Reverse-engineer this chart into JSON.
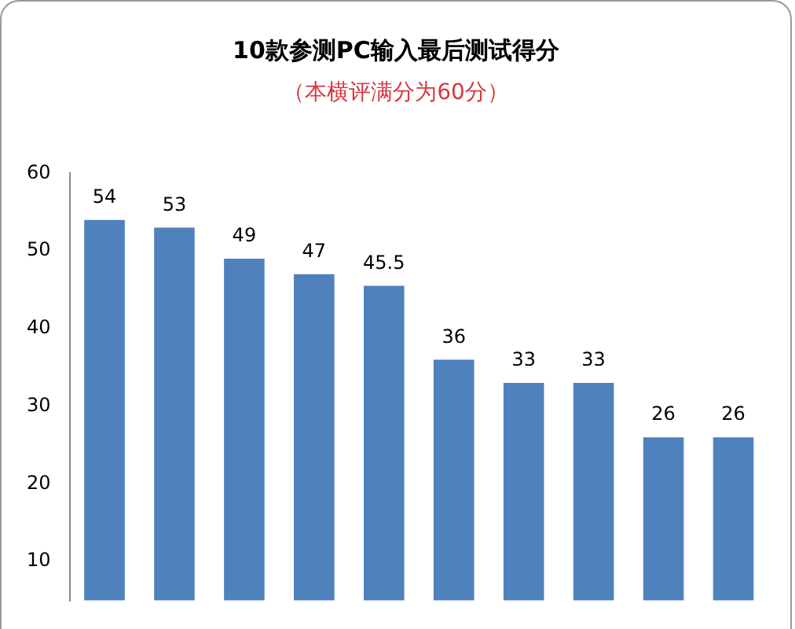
{
  "chart_data": {
    "type": "bar",
    "title": "10款参测PC输入最后测试得分",
    "subtitle": "（本横评满分为60分）",
    "categories": [
      null,
      null,
      null,
      null,
      null,
      null,
      null,
      null,
      null,
      null
    ],
    "values": [
      54,
      53,
      49,
      47,
      45.5,
      36,
      33,
      33,
      26,
      26
    ],
    "color": "#4f81bd",
    "ylim": [
      5,
      60
    ],
    "yticks": [
      10,
      20,
      30,
      40,
      50,
      60
    ],
    "grid": false,
    "legend": false,
    "data_labels": true
  }
}
